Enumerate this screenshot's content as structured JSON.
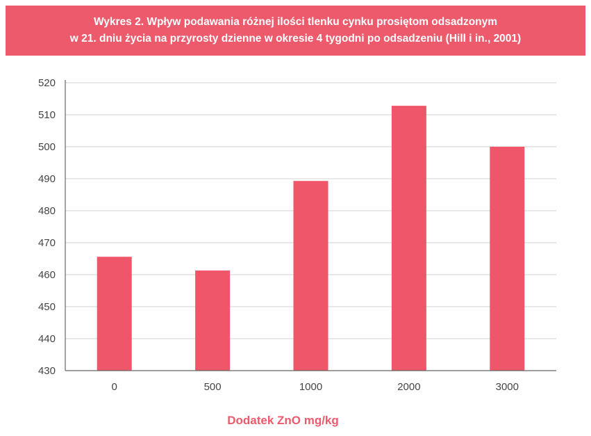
{
  "header": {
    "title_line1": "Wykres 2. Wpływ podawania różnej ilości tlenku cynku prosiętom odsadzonym",
    "title_line2": "w 21. dniu życia na przyrosty dzienne w okresie 4 tygodni po odsadzeniu (Hill i in., 2001)"
  },
  "colors": {
    "accent": "#ed5a6b",
    "bar": "#f0566a",
    "grid": "#d0d0d0",
    "axis": "#666666"
  },
  "chart_data": {
    "type": "bar",
    "title": "Wykres 2. Wpływ podawania różnej ilości tlenku cynku prosiętom odsadzonym w 21. dniu życia na przyrosty dzienne w okresie 4 tygodni po odsadzeniu (Hill i in., 2001)",
    "categories": [
      "0",
      "500",
      "1000",
      "2000",
      "3000"
    ],
    "values": [
      465.6,
      461.3,
      489.3,
      512.8,
      500.0
    ],
    "xlabel": "Dodatek ZnO mg/kg",
    "ylabel": "",
    "ylim": [
      430,
      520
    ],
    "yticks": [
      430,
      440,
      450,
      460,
      470,
      480,
      490,
      500,
      510,
      520
    ],
    "grid": true,
    "legend": "none"
  }
}
